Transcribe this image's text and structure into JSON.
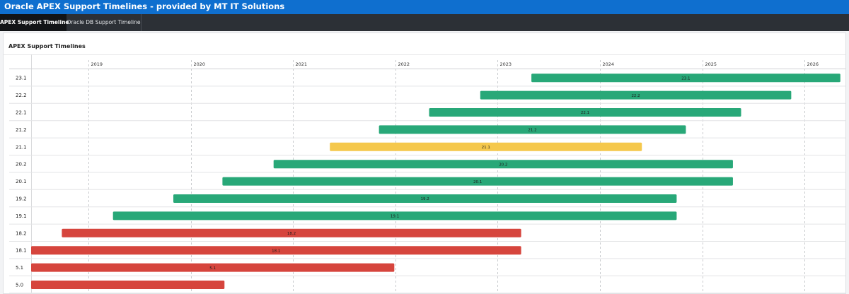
{
  "app_title": "Oracle APEX Support Timelines - provided by MT IT Solutions",
  "tabs": [
    {
      "label": "APEX Support Timeline",
      "active": true
    },
    {
      "label": "Oracle DB Support Timeline",
      "active": false
    }
  ],
  "card_title": "APEX Support Timelines",
  "colors": {
    "supported": "#28a878",
    "limited": "#f5c84c",
    "ended": "#d6453d"
  },
  "chart_data": {
    "type": "timeline",
    "x_axis": {
      "range": [
        2018.44,
        2026.4
      ],
      "ticks": [
        "2019",
        "2020",
        "2021",
        "2022",
        "2023",
        "2024",
        "2025",
        "2026"
      ],
      "grid": true
    },
    "rows": [
      {
        "label": "23.1",
        "bar_label": "23.1",
        "start": 2023.33,
        "end": 2026.35,
        "status": "supported"
      },
      {
        "label": "22.2",
        "bar_label": "22.2",
        "start": 2022.83,
        "end": 2025.87,
        "status": "supported"
      },
      {
        "label": "22.1",
        "bar_label": "22.1",
        "start": 2022.33,
        "end": 2025.38,
        "status": "supported"
      },
      {
        "label": "21.2",
        "bar_label": "21.2",
        "start": 2021.84,
        "end": 2024.84,
        "status": "supported"
      },
      {
        "label": "21.1",
        "bar_label": "21.1",
        "start": 2021.36,
        "end": 2024.41,
        "status": "limited"
      },
      {
        "label": "20.2",
        "bar_label": "20.2",
        "start": 2020.81,
        "end": 2025.3,
        "status": "supported"
      },
      {
        "label": "20.1",
        "bar_label": "20.1",
        "start": 2020.31,
        "end": 2025.3,
        "status": "supported"
      },
      {
        "label": "19.2",
        "bar_label": "19.2",
        "start": 2019.83,
        "end": 2024.75,
        "status": "supported"
      },
      {
        "label": "19.1",
        "bar_label": "19.1",
        "start": 2019.24,
        "end": 2024.75,
        "status": "supported"
      },
      {
        "label": "18.2",
        "bar_label": "18.2",
        "start": 2018.74,
        "end": 2023.23,
        "status": "ended"
      },
      {
        "label": "18.1",
        "bar_label": "18.1",
        "start": 2018.44,
        "end": 2023.23,
        "status": "ended"
      },
      {
        "label": "5.1",
        "bar_label": "5.1",
        "start": 2018.44,
        "end": 2021.99,
        "status": "ended"
      },
      {
        "label": "5.0",
        "bar_label": "",
        "start": 2018.44,
        "end": 2020.33,
        "status": "ended"
      }
    ]
  }
}
